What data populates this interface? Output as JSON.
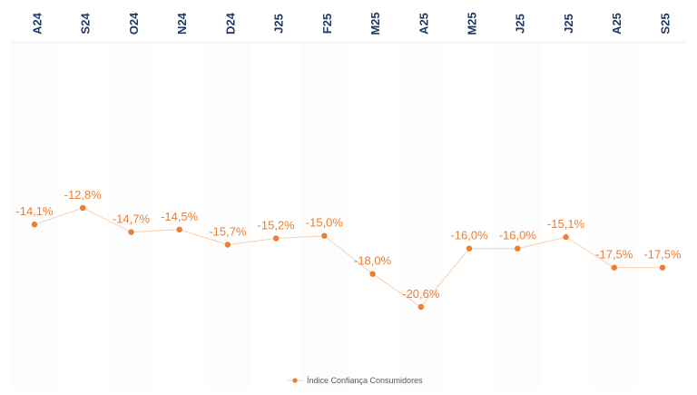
{
  "chart_data": {
    "type": "line",
    "categories": [
      "A24",
      "S24",
      "O24",
      "N24",
      "D24",
      "J25",
      "F25",
      "M25",
      "A25",
      "M25",
      "J25",
      "J25",
      "A25",
      "S25"
    ],
    "series": [
      {
        "name": "Índice Confiança Consumidores",
        "values": [
          -14.1,
          -12.8,
          -14.7,
          -14.5,
          -15.7,
          -15.2,
          -15.0,
          -18.0,
          -20.6,
          -16.0,
          -16.0,
          -15.1,
          -17.5,
          -17.5
        ],
        "labels": [
          "-14,1%",
          "-12,8%",
          "-14,7%",
          "-14,5%",
          "-15,7%",
          "-15,2%",
          "-15,0%",
          "-18,0%",
          "-20,6%",
          "-16,0%",
          "-16,0%",
          "-15,1%",
          "-17,5%",
          "-17,5%"
        ],
        "color": "#ed7d31"
      }
    ],
    "category_axis_position": "top",
    "legend_position": "bottom",
    "grid": false,
    "label_color": "#1f3864"
  }
}
